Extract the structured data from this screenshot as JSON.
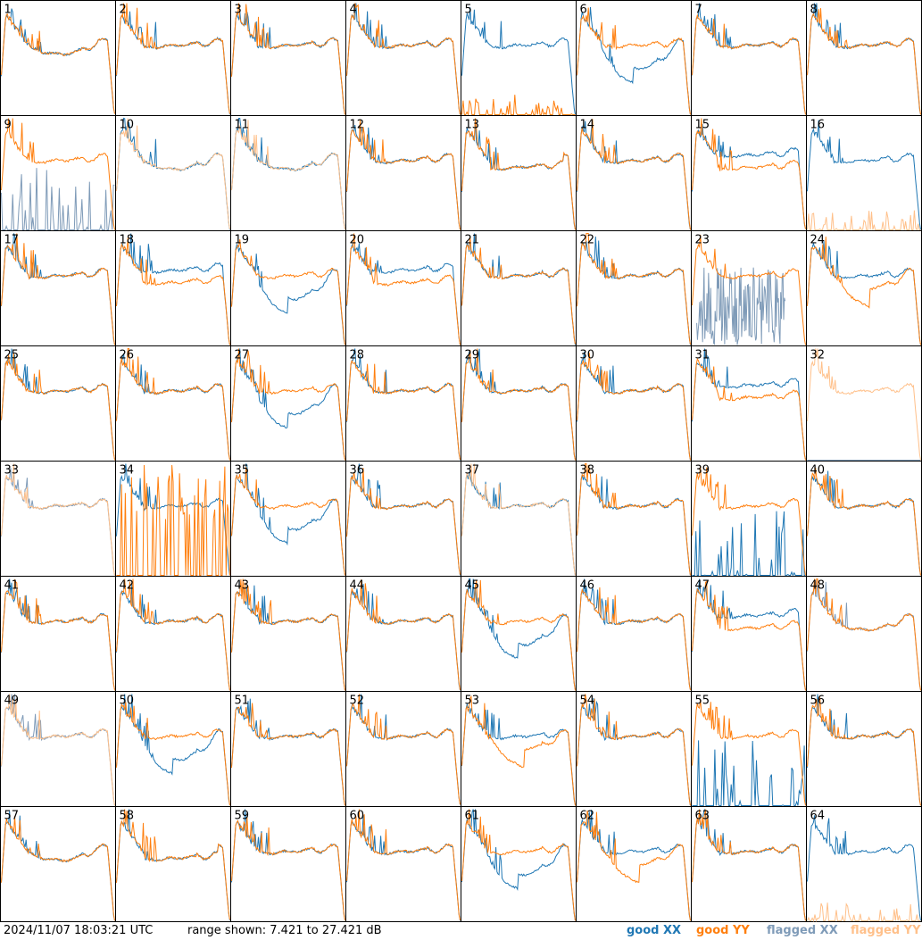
{
  "footer": {
    "timestamp": "2024/11/07 18:03:21 UTC",
    "range_text": "range shown: 7.421 to 27.421 dB"
  },
  "legend": [
    {
      "label": "good XX",
      "color": "#1f77b4"
    },
    {
      "label": "good YY",
      "color": "#ff7f0e"
    },
    {
      "label": "flagged XX",
      "color": "#7f9bb8"
    },
    {
      "label": "flagged YY",
      "color": "#ffc08a"
    }
  ],
  "chart_data": {
    "type": "line",
    "layout": "8x8 grid of per-antenna spectra",
    "y_range_db": [
      7.421,
      27.421
    ],
    "panels": [
      {
        "label": "1",
        "xx": "good",
        "yy": "good",
        "shape": "dip"
      },
      {
        "label": "2",
        "xx": "good",
        "yy": "good",
        "shape": "normal"
      },
      {
        "label": "3",
        "xx": "good",
        "yy": "good",
        "shape": "normal"
      },
      {
        "label": "4",
        "xx": "good",
        "yy": "good",
        "shape": "normal"
      },
      {
        "label": "5",
        "xx": "good",
        "yy": "good",
        "shape": "xx_only"
      },
      {
        "label": "6",
        "xx": "good",
        "yy": "good",
        "shape": "deep_xx"
      },
      {
        "label": "7",
        "xx": "good",
        "yy": "good",
        "shape": "normal"
      },
      {
        "label": "8",
        "xx": "good",
        "yy": "good",
        "shape": "normal"
      },
      {
        "label": "9",
        "xx": "flagged",
        "yy": "good",
        "shape": "yy_spikes_xx_low"
      },
      {
        "label": "10",
        "xx": "good",
        "yy": "flagged",
        "shape": "dip"
      },
      {
        "label": "11",
        "xx": "good",
        "yy": "flagged",
        "shape": "dip"
      },
      {
        "label": "12",
        "xx": "good",
        "yy": "good",
        "shape": "normal"
      },
      {
        "label": "13",
        "xx": "good",
        "yy": "good",
        "shape": "sag"
      },
      {
        "label": "14",
        "xx": "good",
        "yy": "good",
        "shape": "normal"
      },
      {
        "label": "15",
        "xx": "good",
        "yy": "good",
        "shape": "split"
      },
      {
        "label": "16",
        "xx": "good",
        "yy": "flagged",
        "shape": "xx_only"
      },
      {
        "label": "17",
        "xx": "good",
        "yy": "good",
        "shape": "normal"
      },
      {
        "label": "18",
        "xx": "good",
        "yy": "good",
        "shape": "split"
      },
      {
        "label": "19",
        "xx": "good",
        "yy": "good",
        "shape": "deep_xx"
      },
      {
        "label": "20",
        "xx": "good",
        "yy": "good",
        "shape": "split"
      },
      {
        "label": "21",
        "xx": "good",
        "yy": "good",
        "shape": "normal"
      },
      {
        "label": "22",
        "xx": "good",
        "yy": "good",
        "shape": "normal"
      },
      {
        "label": "23",
        "xx": "flagged",
        "yy": "good",
        "shape": "noise_xx"
      },
      {
        "label": "24",
        "xx": "good",
        "yy": "good",
        "shape": "deep_yy"
      },
      {
        "label": "25",
        "xx": "good",
        "yy": "good",
        "shape": "normal"
      },
      {
        "label": "26",
        "xx": "good",
        "yy": "good",
        "shape": "normal"
      },
      {
        "label": "27",
        "xx": "good",
        "yy": "good",
        "shape": "deep_xx"
      },
      {
        "label": "28",
        "xx": "good",
        "yy": "good",
        "shape": "normal"
      },
      {
        "label": "29",
        "xx": "good",
        "yy": "good",
        "shape": "normal"
      },
      {
        "label": "30",
        "xx": "good",
        "yy": "good",
        "shape": "normal"
      },
      {
        "label": "31",
        "xx": "good",
        "yy": "good",
        "shape": "split"
      },
      {
        "label": "32",
        "xx": "flagged",
        "yy": "flagged",
        "shape": "yy_only"
      },
      {
        "label": "33",
        "xx": "flagged",
        "yy": "flagged",
        "shape": "normal"
      },
      {
        "label": "34",
        "xx": "good",
        "yy": "good",
        "shape": "yy_spikes_xx_high"
      },
      {
        "label": "35",
        "xx": "good",
        "yy": "good",
        "shape": "deep_xx"
      },
      {
        "label": "36",
        "xx": "good",
        "yy": "good",
        "shape": "normal"
      },
      {
        "label": "37",
        "xx": "good",
        "yy": "flagged",
        "shape": "normal"
      },
      {
        "label": "38",
        "xx": "good",
        "yy": "good",
        "shape": "normal"
      },
      {
        "label": "39",
        "xx": "good",
        "yy": "good",
        "shape": "yy_spikes_xx_low"
      },
      {
        "label": "40",
        "xx": "good",
        "yy": "good",
        "shape": "normal"
      },
      {
        "label": "41",
        "xx": "good",
        "yy": "good",
        "shape": "normal"
      },
      {
        "label": "42",
        "xx": "good",
        "yy": "good",
        "shape": "normal"
      },
      {
        "label": "43",
        "xx": "good",
        "yy": "good",
        "shape": "normal"
      },
      {
        "label": "44",
        "xx": "good",
        "yy": "good",
        "shape": "normal"
      },
      {
        "label": "45",
        "xx": "good",
        "yy": "good",
        "shape": "deep_xx"
      },
      {
        "label": "46",
        "xx": "good",
        "yy": "good",
        "shape": "normal"
      },
      {
        "label": "47",
        "xx": "good",
        "yy": "good",
        "shape": "split"
      },
      {
        "label": "48",
        "xx": "flagged",
        "yy": "good",
        "shape": "dip"
      },
      {
        "label": "49",
        "xx": "flagged",
        "yy": "flagged",
        "shape": "normal"
      },
      {
        "label": "50",
        "xx": "good",
        "yy": "good",
        "shape": "deep_xx"
      },
      {
        "label": "51",
        "xx": "good",
        "yy": "good",
        "shape": "normal"
      },
      {
        "label": "52",
        "xx": "good",
        "yy": "good",
        "shape": "normal"
      },
      {
        "label": "53",
        "xx": "good",
        "yy": "good",
        "shape": "deep_yy"
      },
      {
        "label": "54",
        "xx": "good",
        "yy": "good",
        "shape": "normal"
      },
      {
        "label": "55",
        "xx": "good",
        "yy": "good",
        "shape": "yy_spikes_xx_low"
      },
      {
        "label": "56",
        "xx": "good",
        "yy": "good",
        "shape": "normal"
      },
      {
        "label": "57",
        "xx": "good",
        "yy": "good",
        "shape": "dip"
      },
      {
        "label": "58",
        "xx": "good",
        "yy": "good",
        "shape": "sag"
      },
      {
        "label": "59",
        "xx": "good",
        "yy": "good",
        "shape": "normal"
      },
      {
        "label": "60",
        "xx": "good",
        "yy": "good",
        "shape": "normal"
      },
      {
        "label": "61",
        "xx": "good",
        "yy": "good",
        "shape": "deep_xx"
      },
      {
        "label": "62",
        "xx": "good",
        "yy": "good",
        "shape": "deep_yy"
      },
      {
        "label": "63",
        "xx": "good",
        "yy": "good",
        "shape": "normal"
      },
      {
        "label": "64",
        "xx": "good",
        "yy": "flagged",
        "shape": "xx_only"
      }
    ]
  }
}
